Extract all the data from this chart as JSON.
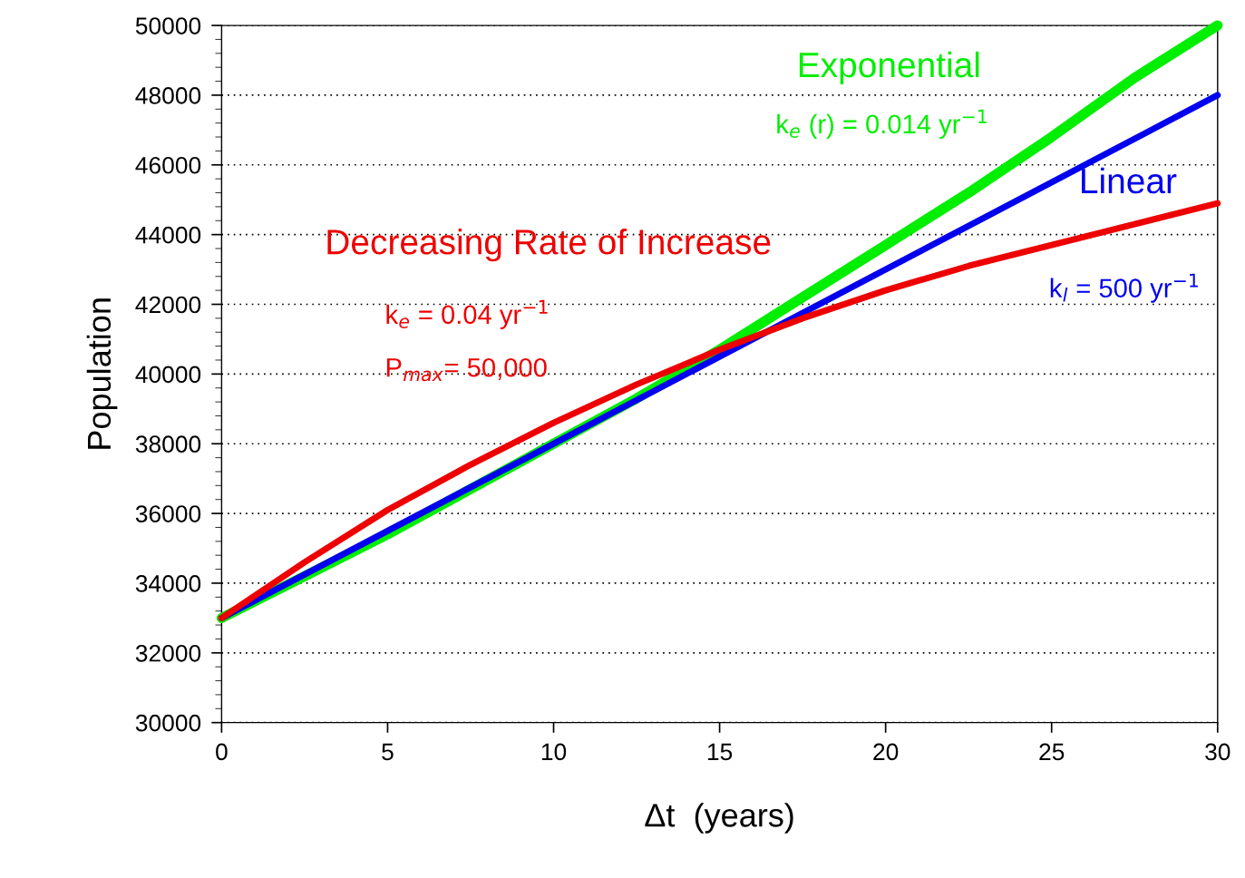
{
  "chart_data": {
    "type": "line",
    "xlabel": "Δt  (years)",
    "ylabel": "Population",
    "xlim": [
      0,
      30
    ],
    "xticks": [
      0,
      5,
      10,
      15,
      20,
      25,
      30
    ],
    "ylim": [
      30000,
      50000
    ],
    "yticks": [
      30000,
      32000,
      34000,
      36000,
      38000,
      40000,
      42000,
      44000,
      46000,
      48000,
      50000
    ],
    "grid": "y",
    "legend": false,
    "marker": "none",
    "line_style": "solid",
    "series": [
      {
        "name": "Exponential",
        "color": "#00ee00",
        "x": [
          0,
          2.5,
          5,
          7.5,
          10,
          12.5,
          15,
          17.5,
          20,
          22.5,
          25,
          27.5,
          30
        ],
        "values": [
          33000,
          34200,
          35400,
          36700,
          38000,
          39300,
          40700,
          42200,
          43700,
          45200,
          46800,
          48500,
          50000
        ]
      },
      {
        "name": "Linear",
        "color": "#0000ee",
        "x": [
          0,
          30
        ],
        "values": [
          33000,
          48000
        ]
      },
      {
        "name": "Decreasing Rate of Increase",
        "color": "#ee0000",
        "x": [
          0,
          2.5,
          5,
          7.5,
          10,
          12.5,
          15,
          17.5,
          20,
          22.5,
          25,
          27.5,
          30
        ],
        "values": [
          33000,
          34600,
          36100,
          37400,
          38600,
          39700,
          40700,
          41600,
          42400,
          43100,
          43700,
          44300,
          44900
        ]
      }
    ],
    "annotations": [
      "k$_{e}$ (r) = 0.014 yr$^{−1}$",
      "k$_{l}$ = 500 yr$^{−1}$",
      "k$_{e}$ = 0.04 yr$^{−1}$",
      "P$_{max}$= 50,000"
    ]
  }
}
